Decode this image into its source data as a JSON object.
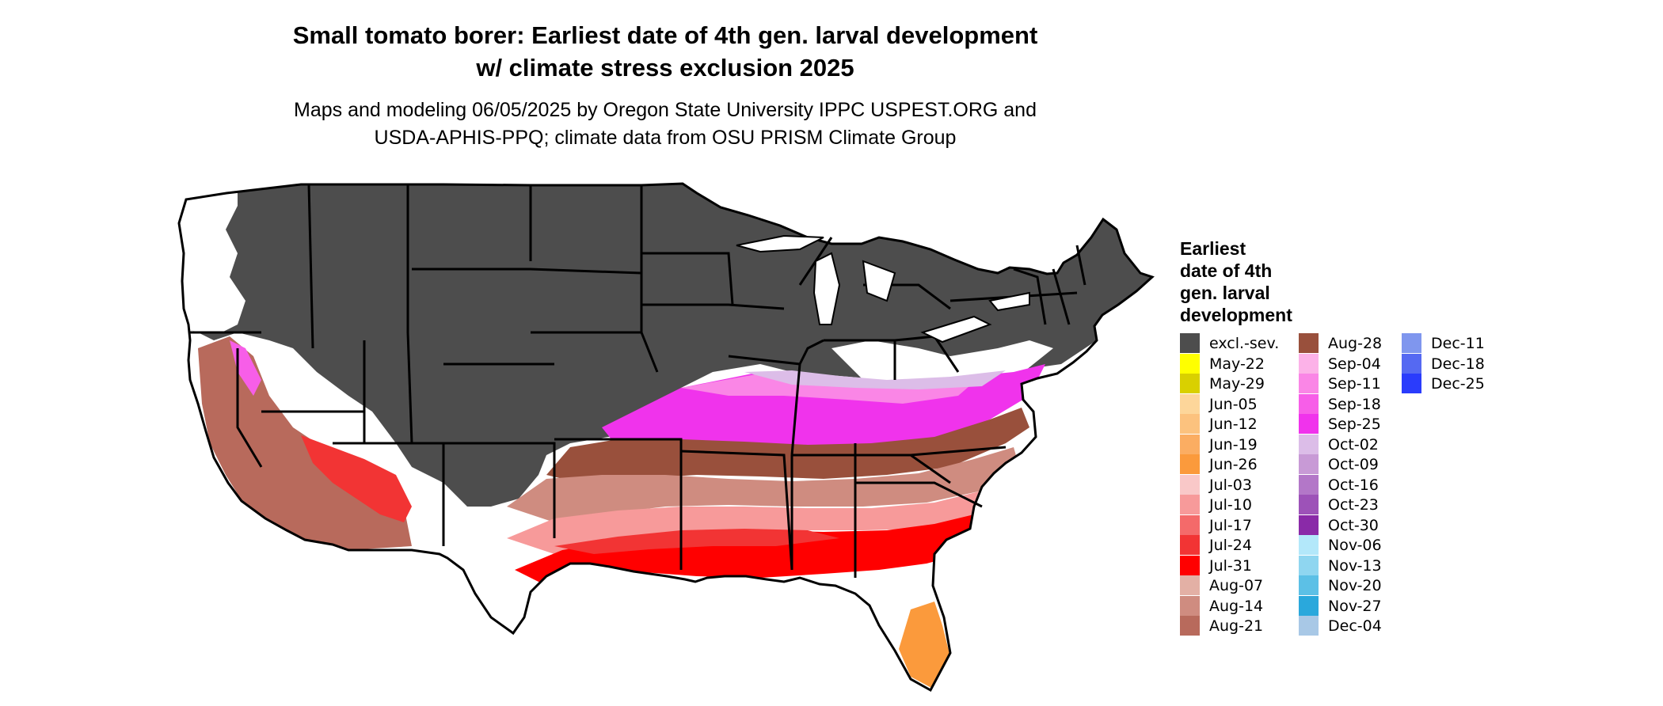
{
  "title_line1": "Small tomato borer: Earliest date of 4th gen. larval development",
  "title_line2": "w/ climate stress exclusion 2025",
  "subtitle_line1": "Maps and modeling 06/05/2025 by Oregon State University IPPC USPEST.ORG and",
  "subtitle_line2": "USDA-APHIS-PPQ; climate data from OSU PRISM Climate Group",
  "legend": {
    "title_lines": [
      "Earliest",
      "date of 4th",
      "gen. larval",
      "development"
    ],
    "columns": [
      [
        {
          "label": "excl.-sev.",
          "color": "#4d4d4d"
        },
        {
          "label": "May-22",
          "color": "#ffff00"
        },
        {
          "label": "May-29",
          "color": "#d9d000"
        },
        {
          "label": "Jun-05",
          "color": "#fdd69a"
        },
        {
          "label": "Jun-12",
          "color": "#fcc27e"
        },
        {
          "label": "Jun-19",
          "color": "#fbad62"
        },
        {
          "label": "Jun-26",
          "color": "#fb9a3c"
        },
        {
          "label": "Jul-03",
          "color": "#f9c8c8"
        },
        {
          "label": "Jul-10",
          "color": "#f79a9a"
        },
        {
          "label": "Jul-17",
          "color": "#f46a6a"
        },
        {
          "label": "Jul-24",
          "color": "#f23434"
        },
        {
          "label": "Jul-31",
          "color": "#ff0000"
        },
        {
          "label": "Aug-07",
          "color": "#e3b0a5"
        },
        {
          "label": "Aug-14",
          "color": "#cf8c80"
        },
        {
          "label": "Aug-21",
          "color": "#b86a5c"
        }
      ],
      [
        {
          "label": "Aug-28",
          "color": "#99503c"
        },
        {
          "label": "Sep-04",
          "color": "#fcb2e8"
        },
        {
          "label": "Sep-11",
          "color": "#fa86e6"
        },
        {
          "label": "Sep-18",
          "color": "#f75ee8"
        },
        {
          "label": "Sep-25",
          "color": "#f033ec"
        },
        {
          "label": "Oct-02",
          "color": "#dcbde8"
        },
        {
          "label": "Oct-09",
          "color": "#c89ad6"
        },
        {
          "label": "Oct-16",
          "color": "#b377c8"
        },
        {
          "label": "Oct-23",
          "color": "#9d52b8"
        },
        {
          "label": "Oct-30",
          "color": "#8a2aa8"
        },
        {
          "label": "Nov-06",
          "color": "#b3e8fa"
        },
        {
          "label": "Nov-13",
          "color": "#8fd6f0"
        },
        {
          "label": "Nov-20",
          "color": "#5cc0e6"
        },
        {
          "label": "Nov-27",
          "color": "#2aa8dc"
        },
        {
          "label": "Dec-04",
          "color": "#a8c8e6"
        }
      ],
      [
        {
          "label": "Dec-11",
          "color": "#7f96ee"
        },
        {
          "label": "Dec-18",
          "color": "#5569f2"
        },
        {
          "label": "Dec-25",
          "color": "#2a3cfc"
        }
      ]
    ]
  }
}
